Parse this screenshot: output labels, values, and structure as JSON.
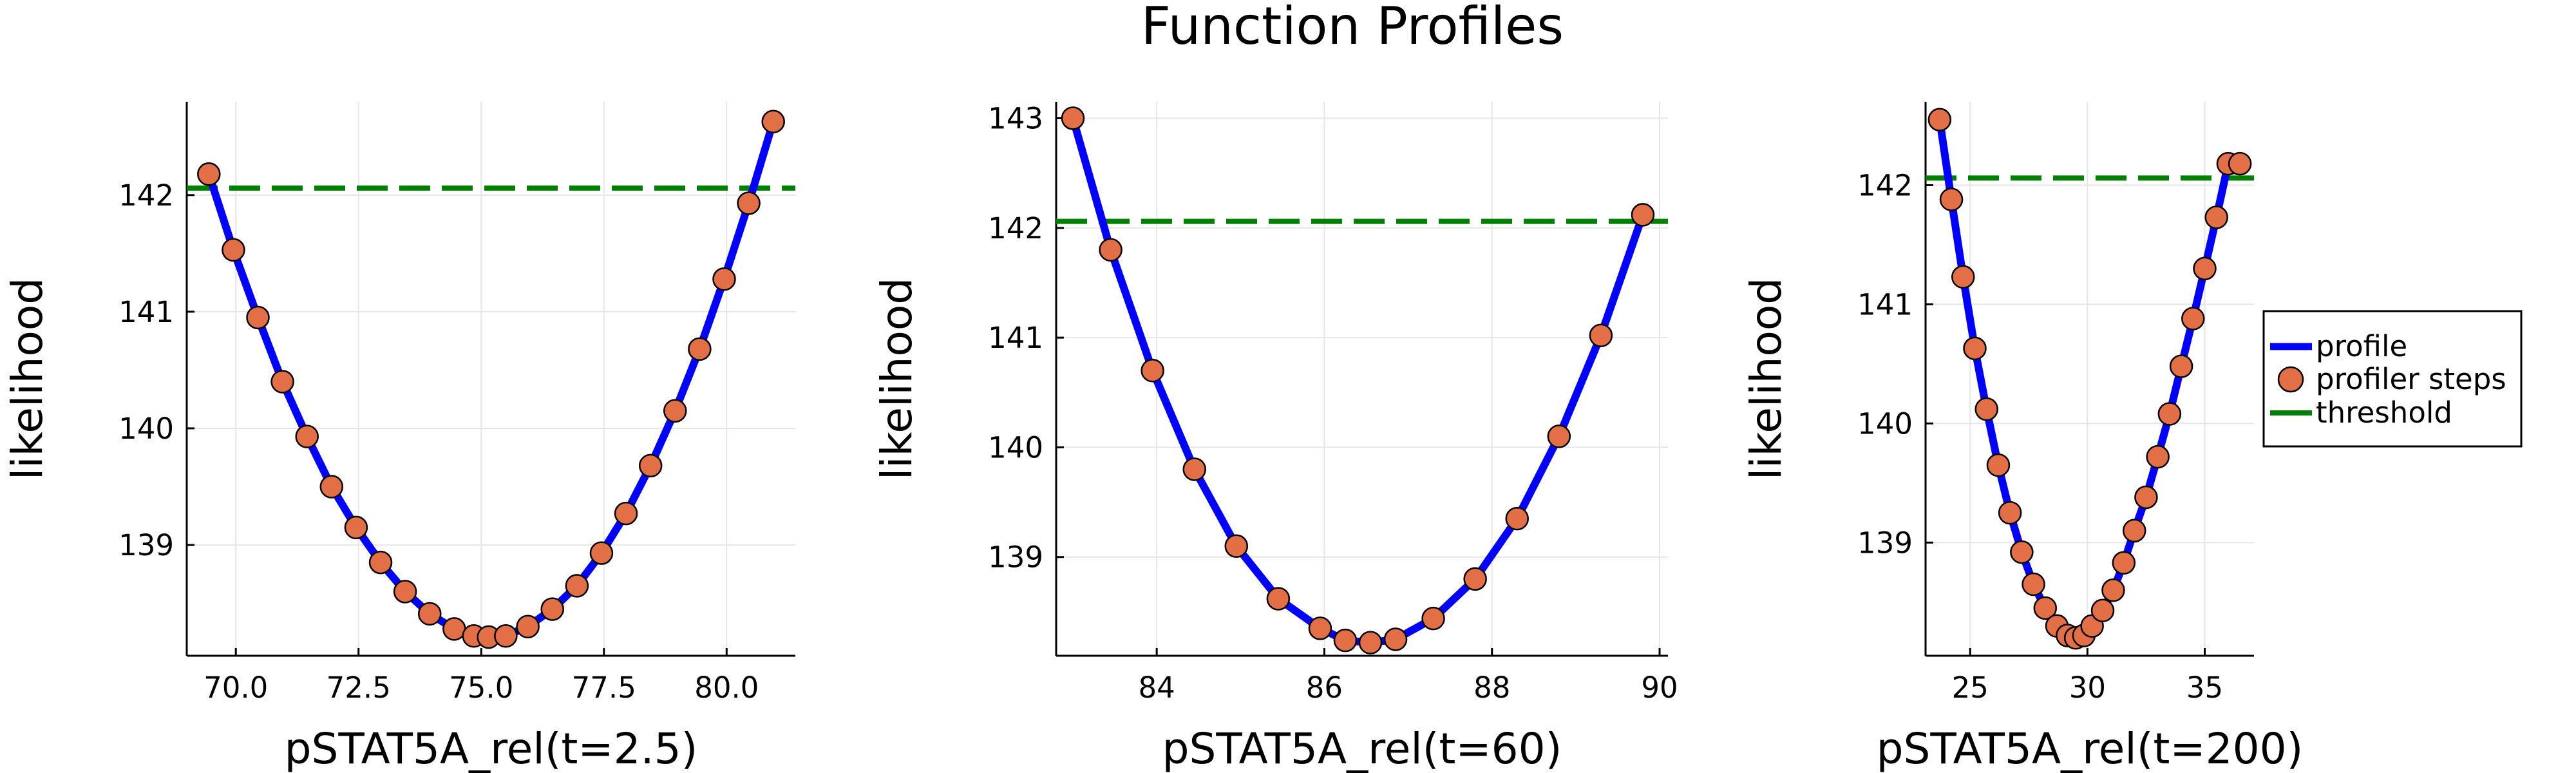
{
  "figure": {
    "title": "Function Profiles"
  },
  "colors": {
    "profile": "#0000ff",
    "steps_fill": "#e26f46",
    "steps_stroke": "#000000",
    "threshold": "#008000",
    "grid": "#e6e6e6"
  },
  "legend": {
    "placement": "right",
    "items": [
      {
        "key": "profile",
        "label": "profile"
      },
      {
        "key": "steps",
        "label": "profiler steps"
      },
      {
        "key": "threshold",
        "label": "threshold"
      }
    ]
  },
  "chart_data": [
    {
      "type": "line",
      "title": "",
      "xlabel": "pSTAT5A_rel(t=2.5)",
      "ylabel": "likelihood",
      "xlim": [
        69.0,
        81.4
      ],
      "ylim": [
        138.05,
        142.8
      ],
      "xticks": [
        70.0,
        72.5,
        75.0,
        77.5,
        80.0
      ],
      "xtick_labels": [
        "70.0",
        "72.5",
        "75.0",
        "77.5",
        "80.0"
      ],
      "yticks": [
        139,
        140,
        141,
        142
      ],
      "ytick_labels": [
        "139",
        "140",
        "141",
        "142"
      ],
      "grid": true,
      "threshold": 142.06,
      "series": [
        {
          "name": "profile",
          "x": [
            69.45,
            69.95,
            70.45,
            70.95,
            71.45,
            71.95,
            72.45,
            72.95,
            73.45,
            73.95,
            74.45,
            74.85,
            75.15,
            75.5,
            75.95,
            76.45,
            76.95,
            77.45,
            77.95,
            78.45,
            78.95,
            79.45,
            79.95,
            80.45,
            80.95
          ],
          "y": [
            142.18,
            141.53,
            140.95,
            140.4,
            139.93,
            139.5,
            139.15,
            138.85,
            138.6,
            138.41,
            138.28,
            138.22,
            138.21,
            138.22,
            138.3,
            138.45,
            138.65,
            138.93,
            139.27,
            139.68,
            140.15,
            140.68,
            141.28,
            141.93,
            142.63
          ]
        }
      ]
    },
    {
      "type": "line",
      "title": "",
      "xlabel": "pSTAT5A_rel(t=60)",
      "ylabel": "likelihood",
      "xlim": [
        82.8,
        90.1
      ],
      "ylim": [
        138.1,
        143.15
      ],
      "xticks": [
        84,
        86,
        88,
        90
      ],
      "xtick_labels": [
        "84",
        "86",
        "88",
        "90"
      ],
      "yticks": [
        139,
        140,
        141,
        142,
        143
      ],
      "ytick_labels": [
        "139",
        "140",
        "141",
        "142",
        "143"
      ],
      "grid": true,
      "threshold": 142.06,
      "series": [
        {
          "name": "profile",
          "x": [
            83.0,
            83.45,
            83.95,
            84.45,
            84.95,
            85.45,
            85.95,
            86.25,
            86.55,
            86.85,
            87.3,
            87.8,
            88.3,
            88.8,
            89.3,
            89.8
          ],
          "y": [
            143.0,
            141.8,
            140.7,
            139.8,
            139.1,
            138.62,
            138.35,
            138.24,
            138.22,
            138.25,
            138.44,
            138.8,
            139.35,
            140.1,
            141.02,
            142.12
          ]
        }
      ]
    },
    {
      "type": "line",
      "title": "",
      "xlabel": "pSTAT5A_rel(t=200)",
      "ylabel": "likelihood",
      "xlim": [
        23.1,
        37.1
      ],
      "ylim": [
        138.05,
        142.7
      ],
      "xticks": [
        25,
        30,
        35
      ],
      "xtick_labels": [
        "25",
        "30",
        "35"
      ],
      "yticks": [
        139,
        140,
        141,
        142
      ],
      "ytick_labels": [
        "139",
        "140",
        "141",
        "142"
      ],
      "grid": true,
      "threshold": 142.06,
      "series": [
        {
          "name": "profile",
          "x": [
            23.7,
            24.2,
            24.7,
            25.2,
            25.7,
            26.2,
            26.7,
            27.2,
            27.7,
            28.2,
            28.7,
            29.15,
            29.5,
            29.85,
            30.2,
            30.65,
            31.1,
            31.55,
            32.0,
            32.5,
            33.0,
            33.5,
            34.0,
            34.5,
            35.0,
            35.5,
            36.0,
            36.5
          ],
          "y": [
            142.55,
            141.88,
            141.23,
            140.63,
            140.12,
            139.65,
            139.25,
            138.92,
            138.65,
            138.45,
            138.3,
            138.22,
            138.2,
            138.22,
            138.3,
            138.43,
            138.6,
            138.83,
            139.1,
            139.38,
            139.72,
            140.08,
            140.48,
            140.88,
            141.3,
            141.73,
            142.18,
            142.18
          ]
        }
      ]
    }
  ]
}
